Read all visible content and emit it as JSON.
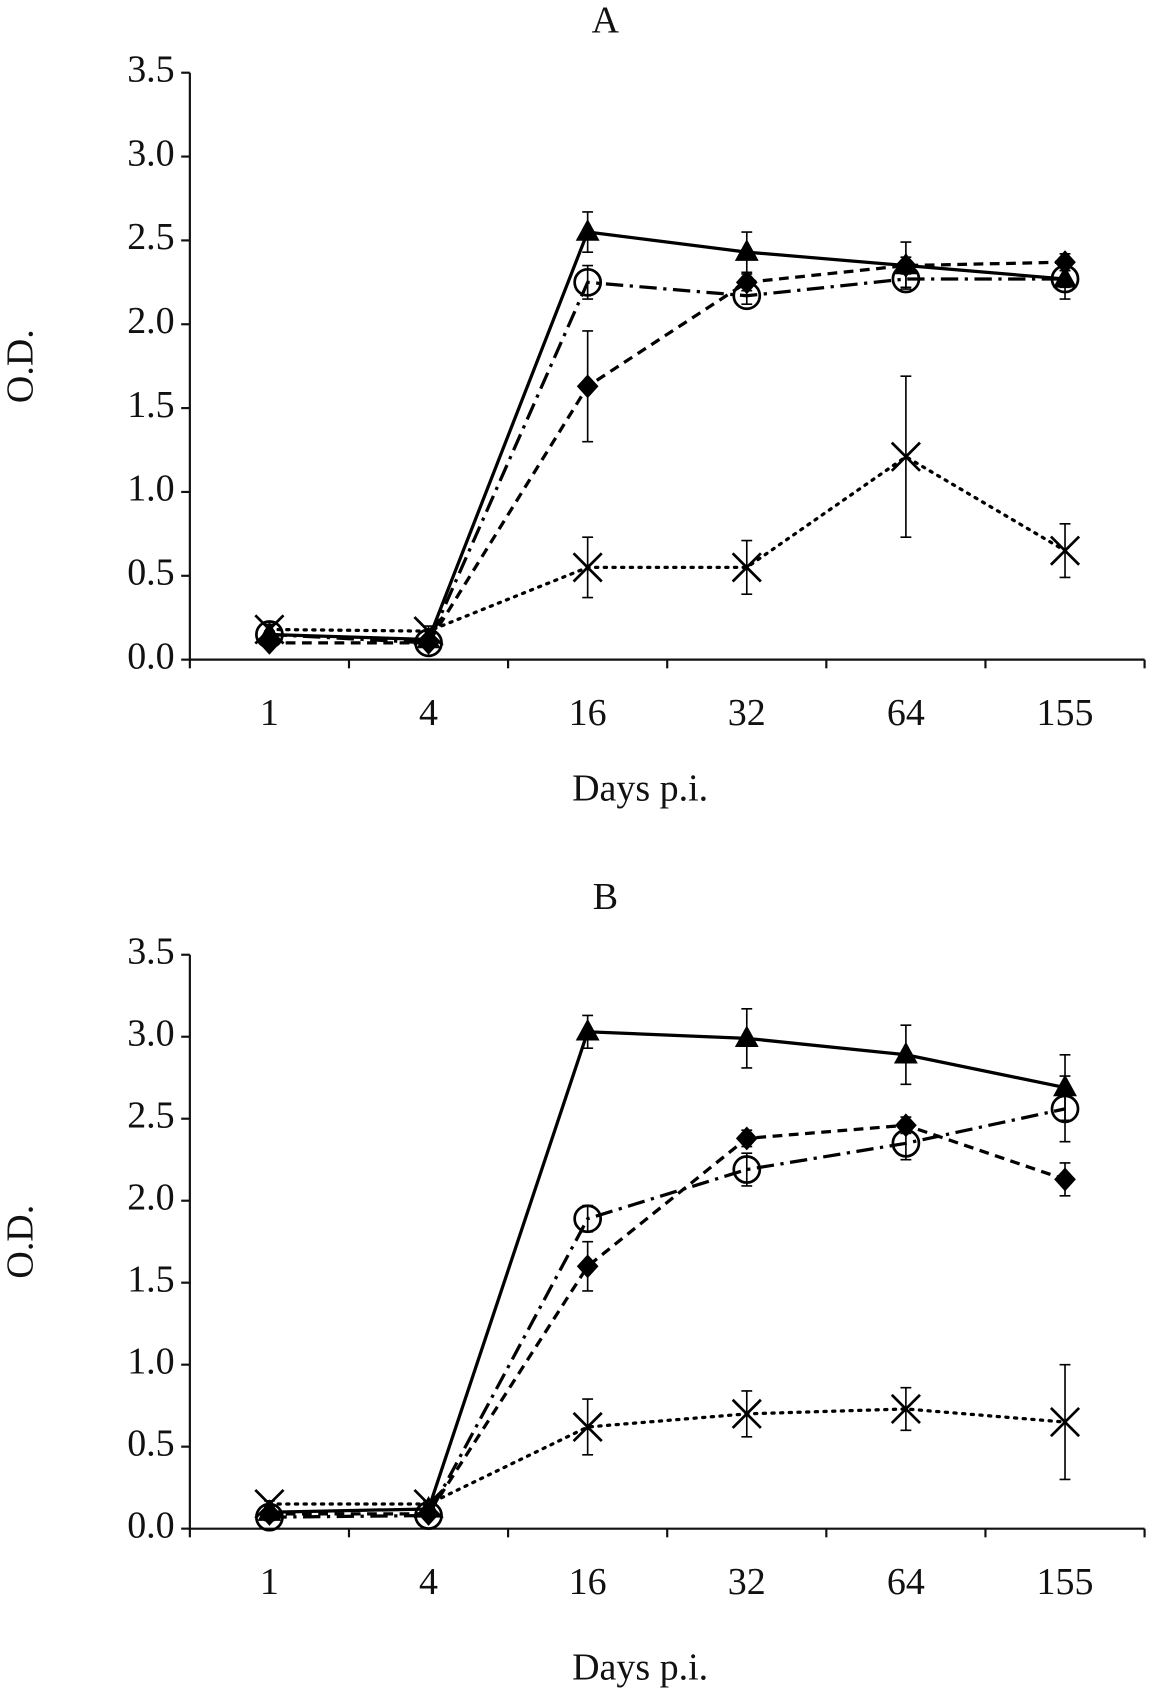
{
  "chart_data": [
    {
      "type": "line",
      "title": "A",
      "x_label": "Days p.i.",
      "y_label": "O.D.",
      "categories": [
        "1",
        "4",
        "16",
        "32",
        "64",
        "155"
      ],
      "ylim": [
        0,
        3.5
      ],
      "yticks": [
        {
          "value": 0,
          "label": "0.0"
        },
        0.5,
        {
          "value": 1,
          "label": "1.0"
        },
        1.5,
        {
          "value": 2,
          "label": "2.0"
        },
        2.5,
        {
          "value": 3,
          "label": "3.0"
        },
        3.5
      ],
      "series": [
        {
          "color": "#000000",
          "marker": "triangle",
          "dash": "solid",
          "values": [
            0.15,
            0.12,
            2.55,
            2.43,
            2.35,
            2.27
          ],
          "errors": [
            0.02,
            0.02,
            0.12,
            0.12,
            0.14,
            0.12
          ]
        },
        {
          "color": "#000000",
          "marker": "circle",
          "dash": "dashdot",
          "values": [
            0.15,
            0.1,
            2.25,
            2.17,
            2.27,
            2.27
          ],
          "errors": [
            0.02,
            0.02,
            0.1,
            0.05,
            0.05,
            0.05
          ]
        },
        {
          "color": "#000000",
          "marker": "diamond",
          "dash": "dashed",
          "values": [
            0.1,
            0.1,
            1.63,
            2.25,
            2.35,
            2.37
          ],
          "errors": [
            0.02,
            0.02,
            0.33,
            0.05,
            0.05,
            0.05
          ]
        },
        {
          "color": "#000000",
          "marker": "x",
          "dash": "dotted",
          "values": [
            0.18,
            0.17,
            0.55,
            0.55,
            1.21,
            0.65
          ],
          "errors": [
            0.03,
            0.03,
            0.18,
            0.16,
            0.48,
            0.16
          ]
        }
      ]
    },
    {
      "type": "line",
      "title": "B",
      "x_label": "Days p.i.",
      "y_label": "O.D.",
      "categories": [
        "1",
        "4",
        "16",
        "32",
        "64",
        "155"
      ],
      "ylim": [
        0,
        3.5
      ],
      "yticks": [
        {
          "value": 0,
          "label": "0.0"
        },
        0.5,
        {
          "value": 1,
          "label": "1.0"
        },
        1.5,
        {
          "value": 2,
          "label": "2.0"
        },
        2.5,
        {
          "value": 3,
          "label": "3.0"
        },
        3.5
      ],
      "series": [
        {
          "color": "#000000",
          "marker": "triangle",
          "dash": "solid",
          "values": [
            0.1,
            0.12,
            3.03,
            2.99,
            2.89,
            2.69
          ],
          "errors": [
            0.02,
            0.02,
            0.1,
            0.18,
            0.18,
            0.2
          ]
        },
        {
          "color": "#000000",
          "marker": "circle",
          "dash": "dashdot",
          "values": [
            0.07,
            0.08,
            1.89,
            2.19,
            2.35,
            2.56
          ],
          "errors": [
            0.02,
            0.02,
            0.08,
            0.1,
            0.1,
            0.2
          ]
        },
        {
          "color": "#000000",
          "marker": "diamond",
          "dash": "dashed",
          "values": [
            0.09,
            0.09,
            1.6,
            2.38,
            2.46,
            2.13
          ],
          "errors": [
            0.02,
            0.02,
            0.15,
            0.05,
            0.05,
            0.1
          ]
        },
        {
          "color": "#000000",
          "marker": "x",
          "dash": "dotted",
          "values": [
            0.15,
            0.15,
            0.62,
            0.7,
            0.73,
            0.65
          ],
          "errors": [
            0.02,
            0.02,
            0.17,
            0.14,
            0.13,
            0.35
          ]
        }
      ]
    }
  ]
}
